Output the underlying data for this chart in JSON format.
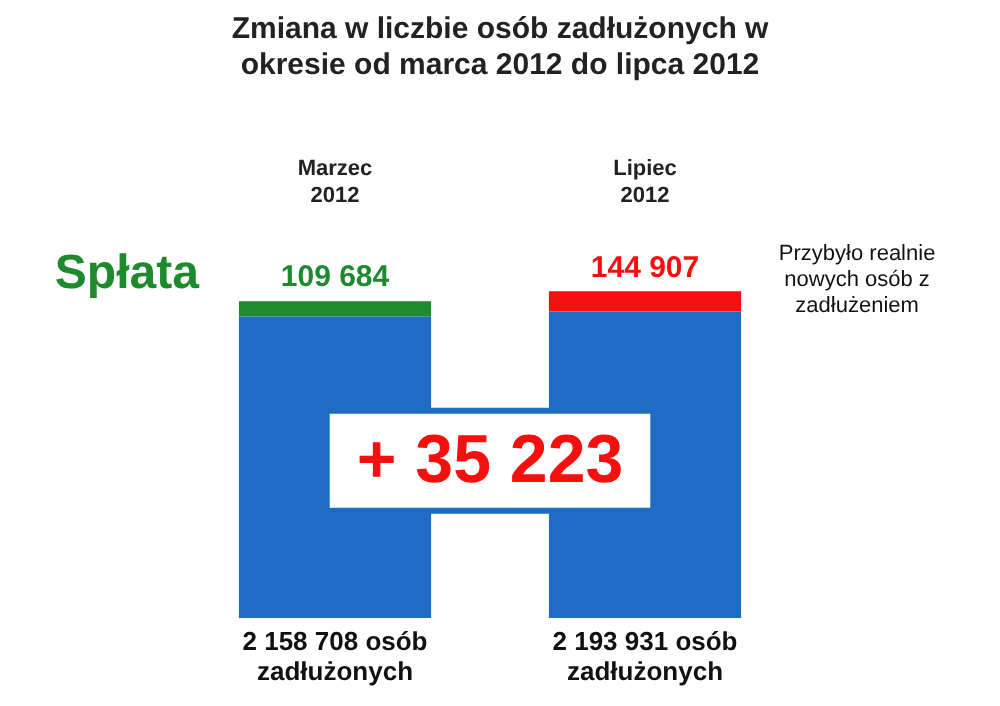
{
  "chart_data": {
    "type": "bar",
    "stacked": true,
    "title": "Zmiana w liczbie osób zadłużonych w okresie od marca 2012 do lipca 2012",
    "categories": [
      "Marzec 2012",
      "Lipiec 2012"
    ],
    "series": [
      {
        "color": "#1f6cc4",
        "values": [
          2158708,
          2193931
        ],
        "value_labels": [
          "2 158 708 osób zadłużonych",
          "2 193 931 osób zadłużonych"
        ]
      },
      {
        "name": "Spłata",
        "color": "#1e8a2e",
        "values": [
          109684,
          null
        ],
        "value_labels": [
          "109 684",
          null
        ]
      },
      {
        "name": "Przybyło realnie nowych osób z zadłużeniem",
        "color": "#f50f0f",
        "values": [
          null,
          144907
        ],
        "value_labels": [
          null,
          "144 907"
        ]
      }
    ],
    "annotations": [
      "+ 35 223"
    ],
    "data_labels": true,
    "legend": false,
    "grid": false,
    "tick_labels": "x"
  }
}
